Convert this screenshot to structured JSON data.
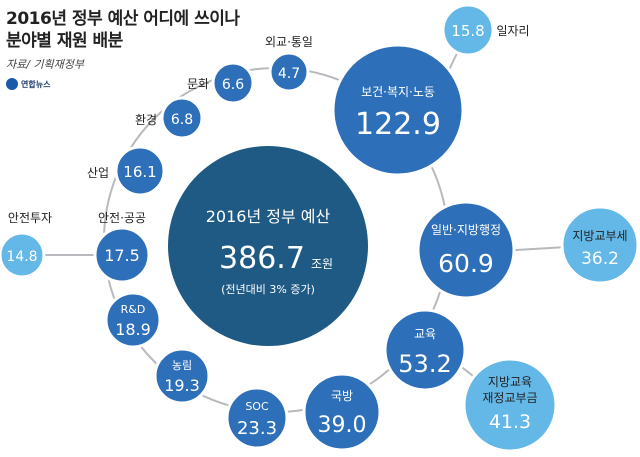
{
  "title_line1": "2016년 정부 예산 어디에 쓰이나",
  "title_line2": "분야별 재원 배분",
  "source": "자료/ 기획재정부",
  "logo": "연합뉴스",
  "center": {
    "label": "2016년 정부 예산",
    "value": "386.7",
    "unit": "조원",
    "note": "(전년대비 3% 증가)"
  },
  "sectors": [
    {
      "id": "health",
      "label": "보건·복지·노동",
      "value": "122.9"
    },
    {
      "id": "jobs",
      "label": "일자리",
      "value": "15.8"
    },
    {
      "id": "general",
      "label": "일반·지방행정",
      "value": "60.9"
    },
    {
      "id": "local-tax",
      "label": "지방교부세",
      "value": "36.2"
    },
    {
      "id": "education",
      "label": "교육",
      "value": "53.2"
    },
    {
      "id": "local-edu",
      "label": "지방교육 재정교부금",
      "value": "41.3"
    },
    {
      "id": "defense",
      "label": "국방",
      "value": "39.0"
    },
    {
      "id": "soc",
      "label": "SOC",
      "value": "23.3"
    },
    {
      "id": "agri",
      "label": "농림",
      "value": "19.3"
    },
    {
      "id": "rnd",
      "label": "R&D",
      "value": "18.9"
    },
    {
      "id": "safety",
      "label": "안전·공공",
      "value": "17.5"
    },
    {
      "id": "safety-invest",
      "label": "안전투자",
      "value": "14.8"
    },
    {
      "id": "industry",
      "label": "산업",
      "value": "16.1"
    },
    {
      "id": "environment",
      "label": "환경",
      "value": "6.8"
    },
    {
      "id": "culture",
      "label": "문화",
      "value": "6.6"
    },
    {
      "id": "diplomacy",
      "label": "외교·통일",
      "value": "4.7"
    }
  ],
  "colors": {
    "ring": "#b7b9bc",
    "center": "#1f5a85",
    "node": "#2d6fb8",
    "sub": "#63b8e8"
  }
}
